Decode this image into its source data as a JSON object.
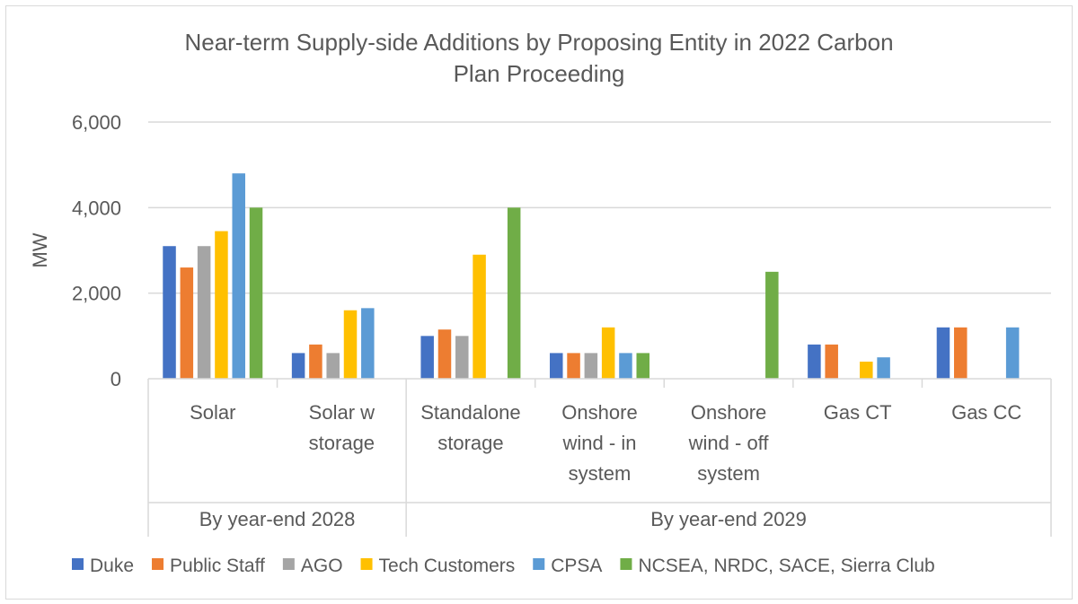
{
  "chart_data": {
    "type": "bar",
    "title": "Near-term Supply-side Additions by Proposing Entity in 2022 Carbon Plan Proceeding",
    "title_lines": [
      "Near-term Supply-side Additions by Proposing Entity in 2022 Carbon",
      "Plan Proceeding"
    ],
    "ylabel": "MW",
    "ylim": [
      0,
      6000
    ],
    "yticks": [
      "0",
      "2,000",
      "4,000",
      "6,000"
    ],
    "grid": true,
    "legend_position": "bottom",
    "categories": [
      [
        "Solar"
      ],
      [
        "Solar w",
        "storage"
      ],
      [
        "Standalone",
        "storage"
      ],
      [
        "Onshore",
        "wind - in",
        "system"
      ],
      [
        "Onshore",
        "wind - off",
        "system"
      ],
      [
        "Gas CT"
      ],
      [
        "Gas CC"
      ]
    ],
    "groups": [
      {
        "label": "By year-end 2028",
        "count": 2
      },
      {
        "label": "By year-end 2029",
        "count": 5
      }
    ],
    "series": [
      {
        "name": "Duke",
        "color": "#4472c4",
        "values": [
          3100,
          600,
          1000,
          600,
          null,
          800,
          1200
        ]
      },
      {
        "name": "Public Staff",
        "color": "#ed7d31",
        "values": [
          2600,
          800,
          1150,
          600,
          null,
          800,
          1200
        ]
      },
      {
        "name": "AGO",
        "color": "#a5a5a5",
        "values": [
          3100,
          600,
          1000,
          600,
          null,
          null,
          null
        ]
      },
      {
        "name": "Tech Customers",
        "color": "#ffc000",
        "values": [
          3450,
          1600,
          2900,
          1200,
          null,
          400,
          null
        ]
      },
      {
        "name": "CPSA",
        "color": "#5b9bd5",
        "values": [
          4800,
          1650,
          null,
          600,
          null,
          500,
          1200
        ]
      },
      {
        "name": "NCSEA, NRDC, SACE, Sierra Club",
        "color": "#70ad47",
        "values": [
          4000,
          null,
          4000,
          600,
          2500,
          null,
          null
        ]
      }
    ]
  }
}
